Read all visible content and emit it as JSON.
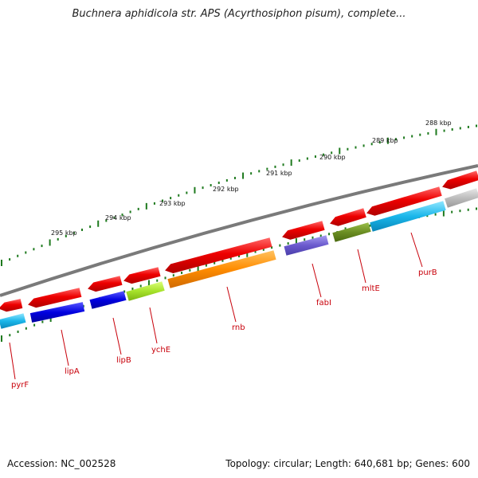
{
  "title": "Buchnera aphidicola str. APS (Acyrthosiphon pisum), complete...",
  "footer": {
    "accession": "Accession: NC_002528",
    "summary": "Topology: circular; Length: 640,681 bp; Genes: 600"
  },
  "colors": {
    "background": "#ffffff",
    "backbone": "#7a7a7a",
    "tick": "#1e7a1e",
    "gene_label": "#c8000a",
    "red_strand": "#e60000"
  },
  "tick_labels": [
    "295 kbp",
    "294 kbp",
    "293 kbp",
    "292 kbp",
    "291 kbp",
    "290 kbp",
    "289 kbp",
    "288 kbp"
  ],
  "gene_labels": [
    "pyrF",
    "lipA",
    "lipB",
    "ychE",
    "rnb",
    "fabI",
    "mltE",
    "purB"
  ]
}
